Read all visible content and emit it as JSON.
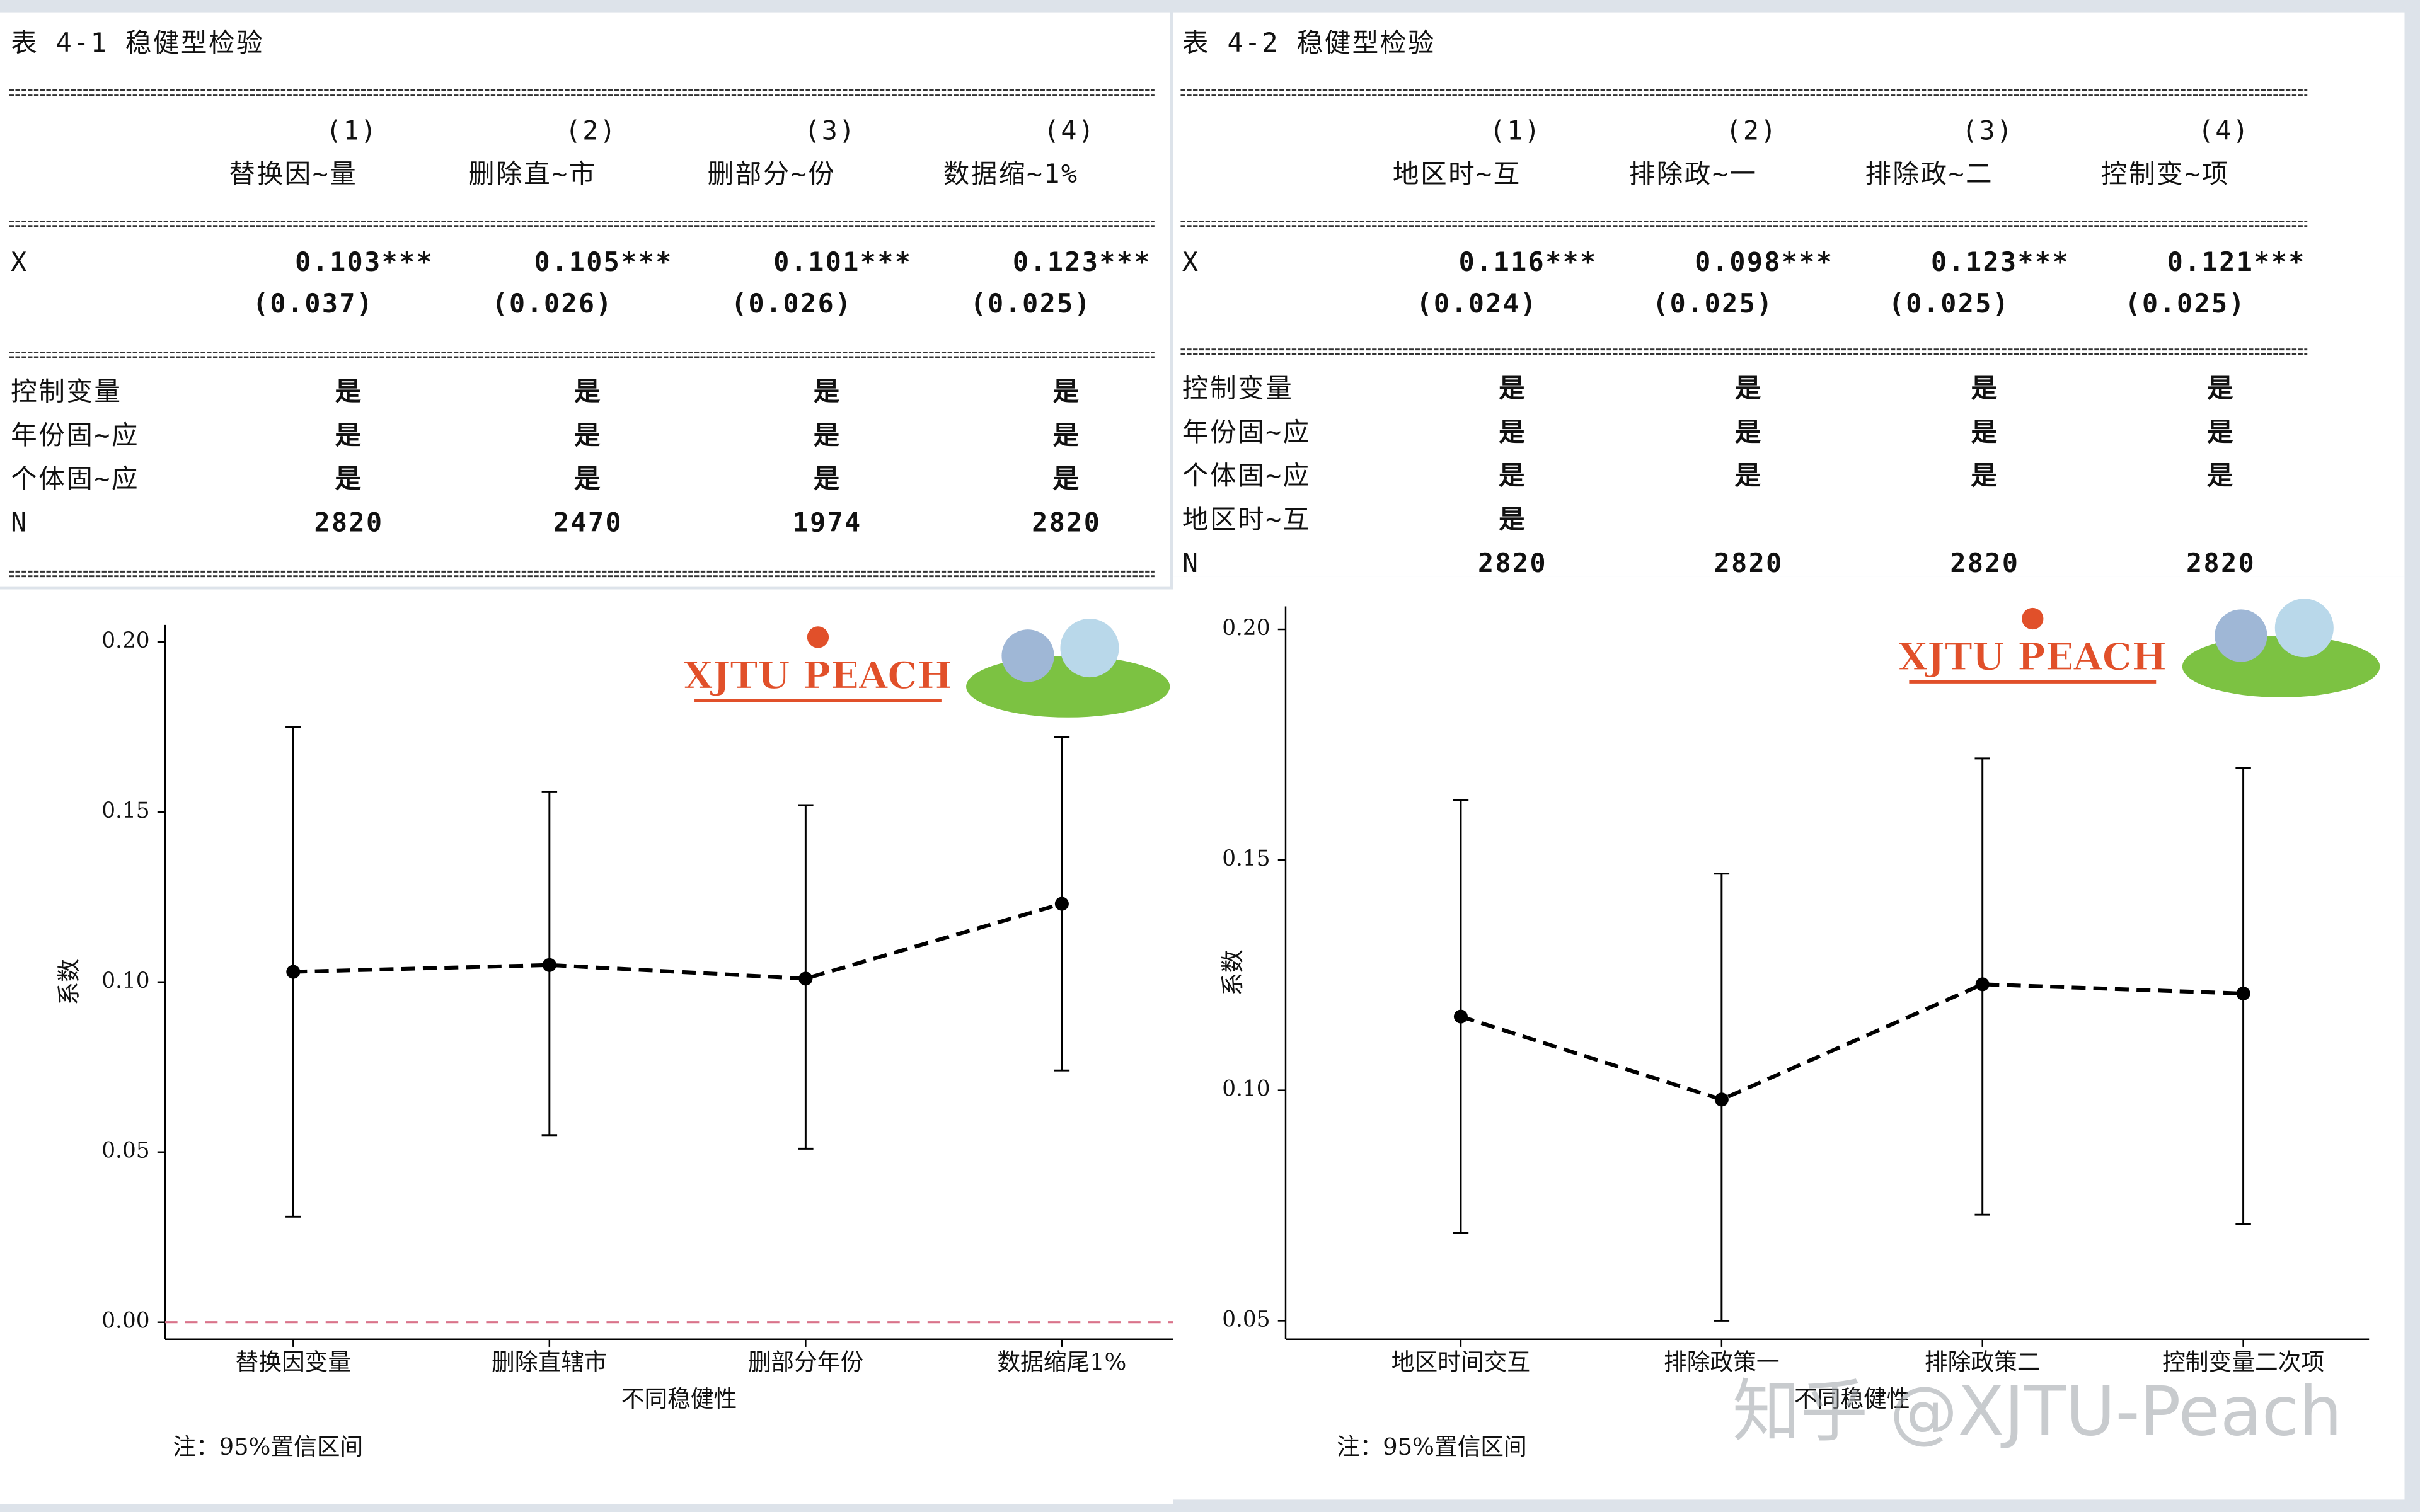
{
  "tables": [
    {
      "title": "表 4-1 稳健型检验",
      "col_numbers": [
        "(1)",
        "(2)",
        "(3)",
        "(4)"
      ],
      "col_names": [
        "替换因~量",
        "删除直~市",
        "删部分~份",
        "数据缩~1%"
      ],
      "coef_label": "X",
      "coefs": [
        "0.103***",
        "0.105***",
        "0.101***",
        "0.123***"
      ],
      "ses": [
        "(0.037)",
        "(0.026)",
        "(0.026)",
        "(0.025)"
      ],
      "rows": [
        [
          "控制变量",
          "是",
          "是",
          "是",
          "是"
        ],
        [
          "年份固~应",
          "是",
          "是",
          "是",
          "是"
        ],
        [
          "个体固~应",
          "是",
          "是",
          "是",
          "是"
        ],
        [
          "N",
          "2820",
          "2470",
          "1974",
          "2820"
        ]
      ]
    },
    {
      "title": "表 4-2 稳健型检验",
      "col_numbers": [
        "(1)",
        "(2)",
        "(3)",
        "(4)"
      ],
      "col_names": [
        "地区时~互",
        "排除政~一",
        "排除政~二",
        "控制变~项"
      ],
      "coef_label": "X",
      "coefs": [
        "0.116***",
        "0.098***",
        "0.123***",
        "0.121***"
      ],
      "ses": [
        "(0.024)",
        "(0.025)",
        "(0.025)",
        "(0.025)"
      ],
      "rows": [
        [
          "控制变量",
          "是",
          "是",
          "是",
          "是"
        ],
        [
          "年份固~应",
          "是",
          "是",
          "是",
          "是"
        ],
        [
          "个体固~应",
          "是",
          "是",
          "是",
          "是"
        ],
        [
          "地区时~互",
          "是"
        ],
        [
          "N",
          "2820",
          "2820",
          "2820",
          "2820"
        ]
      ]
    }
  ],
  "chart_data": [
    {
      "type": "line",
      "ylabel": "系数",
      "xlabel": "不同稳健性",
      "note": "注：95%置信区间",
      "logo_text": "XJTU PEACH",
      "categories": [
        "替换因变量",
        "删除直辖市",
        "删部分年份",
        "数据缩尾1%"
      ],
      "series": [
        {
          "color": "#000000",
          "values": [
            0.103,
            0.105,
            0.101,
            0.123
          ],
          "lower": [
            0.031,
            0.055,
            0.051,
            0.074
          ],
          "upper": [
            0.175,
            0.156,
            0.152,
            0.172
          ]
        }
      ],
      "ylim": [
        -0.005,
        0.205
      ],
      "yticks": [
        {
          "value": 0,
          "label": "0.00"
        },
        {
          "value": 0.05,
          "label": "0.05"
        },
        {
          "value": 0.1,
          "label": "0.10"
        },
        {
          "value": 0.15,
          "label": "0.15"
        },
        {
          "value": 0.2,
          "label": "0.20"
        }
      ],
      "reference_line": 0,
      "reference_color": "#d9738a"
    },
    {
      "type": "line",
      "ylabel": "系数",
      "xlabel": "不同稳健性",
      "note": "注：95%置信区间",
      "logo_text": "XJTU PEACH",
      "categories": [
        "地区时间交互",
        "排除政策一",
        "排除政策二",
        "控制变量二次项"
      ],
      "series": [
        {
          "color": "#000000",
          "values": [
            0.116,
            0.098,
            0.123,
            0.121
          ],
          "lower": [
            0.069,
            0.05,
            0.073,
            0.071
          ],
          "upper": [
            0.163,
            0.147,
            0.172,
            0.17
          ]
        }
      ],
      "ylim": [
        0.046,
        0.205
      ],
      "yticks": [
        {
          "value": 0.05,
          "label": "0.05"
        },
        {
          "value": 0.1,
          "label": "0.10"
        },
        {
          "value": 0.15,
          "label": "0.15"
        },
        {
          "value": 0.2,
          "label": "0.20"
        }
      ]
    }
  ],
  "watermark": "知乎 @XJTU-Peach"
}
